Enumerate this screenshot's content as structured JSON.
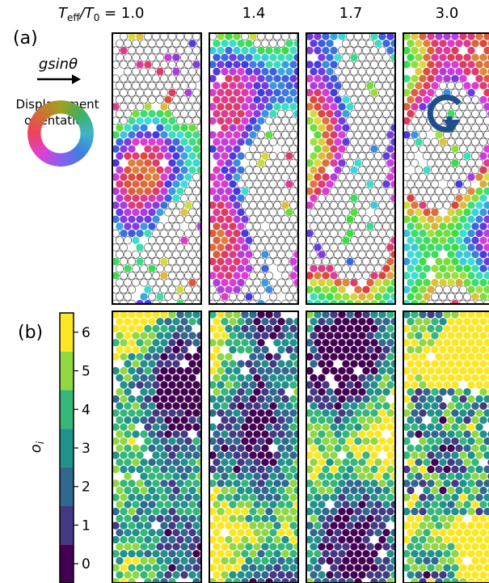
{
  "column_labels": {
    "first": {
      "symbol": "T",
      "sub": "eff",
      "sep": "/T",
      "sub2": "0",
      "rest": " = 1.0"
    },
    "others": [
      "1.4",
      "1.7",
      "3.0"
    ]
  },
  "panel_a": {
    "label": "(a)",
    "force": "gsinθ",
    "ring_caption": [
      "Displacement",
      "orientation"
    ]
  },
  "panel_b": {
    "label": "(b)"
  },
  "colorbar": {
    "label": {
      "base": "o",
      "sub": "i"
    },
    "ticks": [
      0,
      1,
      2,
      3,
      4,
      5,
      6
    ],
    "lim": [
      -0.5,
      6.5
    ],
    "colors": [
      "#440154",
      "#443983",
      "#31688e",
      "#21918c",
      "#35b779",
      "#90d743",
      "#fde725"
    ]
  }
}
